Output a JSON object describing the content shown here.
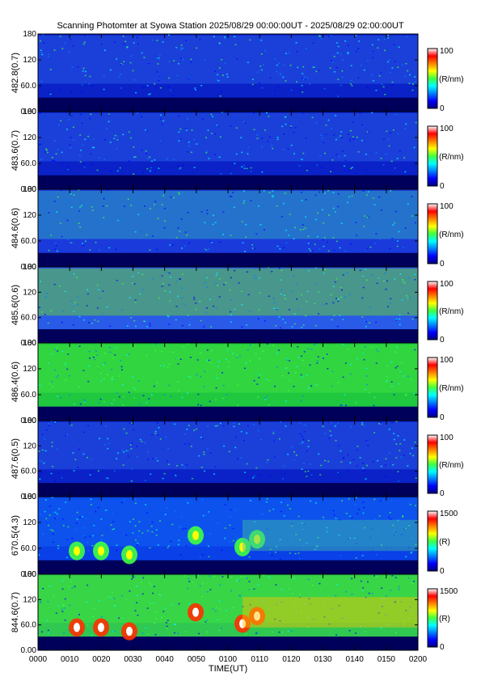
{
  "title": "Scanning Photomter at Syowa Station 2025/08/29 00:00:00UT - 2025/08/29 02:00:00UT",
  "colors": {
    "colormap": [
      "#000080",
      "#0000ff",
      "#0080ff",
      "#00ffff",
      "#40ff40",
      "#ffff00",
      "#ff8000",
      "#ff0000",
      "#ffffff"
    ]
  },
  "chart_data": {
    "type": "heatmap",
    "xlabel": "TIME(UT)",
    "x_ticks": [
      "0000",
      "0010",
      "0020",
      "0030",
      "0040",
      "0050",
      "0100",
      "0110",
      "0120",
      "0130",
      "0140",
      "0150",
      "0200"
    ],
    "y_ticks": [
      "0.00",
      "60.0",
      "120",
      "180"
    ],
    "ylim": [
      0,
      180
    ],
    "panels": [
      {
        "label": "482.8(0.7)",
        "unit": "(R/nm)",
        "cbar_ticks": [
          "0",
          "100"
        ],
        "cmax": 100
      },
      {
        "label": "483.6(0.7)",
        "unit": "(R/nm)",
        "cbar_ticks": [
          "0",
          "100"
        ],
        "cmax": 100
      },
      {
        "label": "484.6(0.6)",
        "unit": "(R/nm)",
        "cbar_ticks": [
          "0",
          "100"
        ],
        "cmax": 100
      },
      {
        "label": "485.6(0.6)",
        "unit": "(R/nm)",
        "cbar_ticks": [
          "0",
          "100"
        ],
        "cmax": 100
      },
      {
        "label": "486.4(0.6)",
        "unit": "(R/nm)",
        "cbar_ticks": [
          "0",
          "100"
        ],
        "cmax": 100
      },
      {
        "label": "487.6(0.5)",
        "unit": "(R/nm)",
        "cbar_ticks": [
          "0",
          "100"
        ],
        "cmax": 100
      },
      {
        "label": "670.5(4.3)",
        "unit": "(R)",
        "cbar_ticks": [
          "0",
          "1500"
        ],
        "cmax": 1500
      },
      {
        "label": "844.6(0.7)",
        "unit": "(R)",
        "cbar_ticks": [
          "0",
          "1500"
        ],
        "cmax": 1500
      }
    ]
  }
}
